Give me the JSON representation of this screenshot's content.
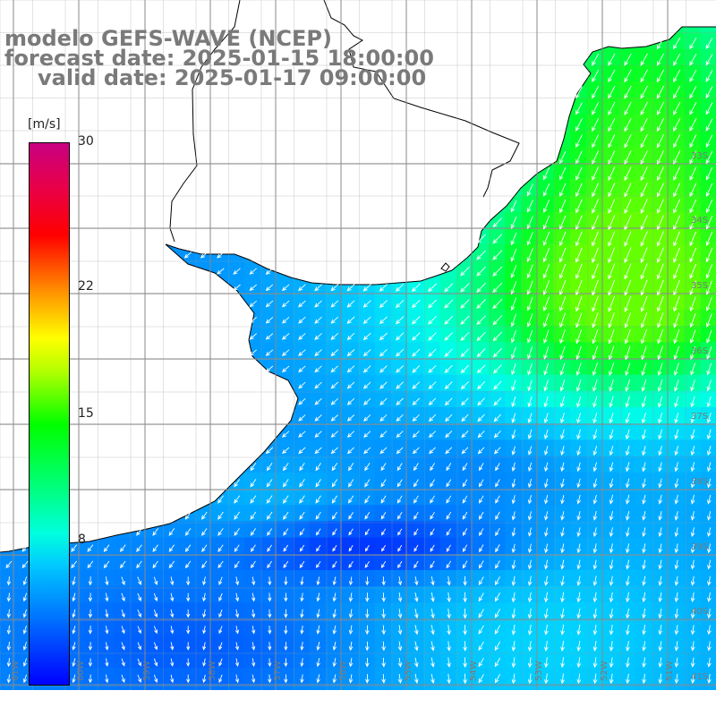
{
  "title": {
    "line1": "modelo GEFS-WAVE (NCEP)",
    "line2": "forecast date: 2025-01-15 18:00:00",
    "line3": "valid date: 2025-01-17 09:00:00"
  },
  "colorbar": {
    "unit": "[m/s]",
    "min": 0,
    "max": 30,
    "ticks": [
      {
        "value": 30,
        "label": "30"
      },
      {
        "value": 22,
        "label": "22"
      },
      {
        "value": 15,
        "label": "15"
      },
      {
        "value": 8,
        "label": "8"
      }
    ]
  },
  "map": {
    "longitude_labels": [
      "61W",
      "60W",
      "59W",
      "58W",
      "57W",
      "56W",
      "55W",
      "54W",
      "53W",
      "52W",
      "51W"
    ],
    "latitude_labels": [
      "33S",
      "34S",
      "35S",
      "36S",
      "37S",
      "38S",
      "39S",
      "40S",
      "41S"
    ],
    "lon_range": [
      -61.5,
      -50.5
    ],
    "lat_range": [
      -41.3,
      -31.0
    ],
    "colors": {
      "ocean_low": "#0000ff",
      "ocean_mid": "#00c8ff",
      "ocean_high": "#00ff00",
      "land": "#ffffff",
      "coast": "#000000",
      "grid": "#888888",
      "arrow": "#ffffff"
    }
  }
}
